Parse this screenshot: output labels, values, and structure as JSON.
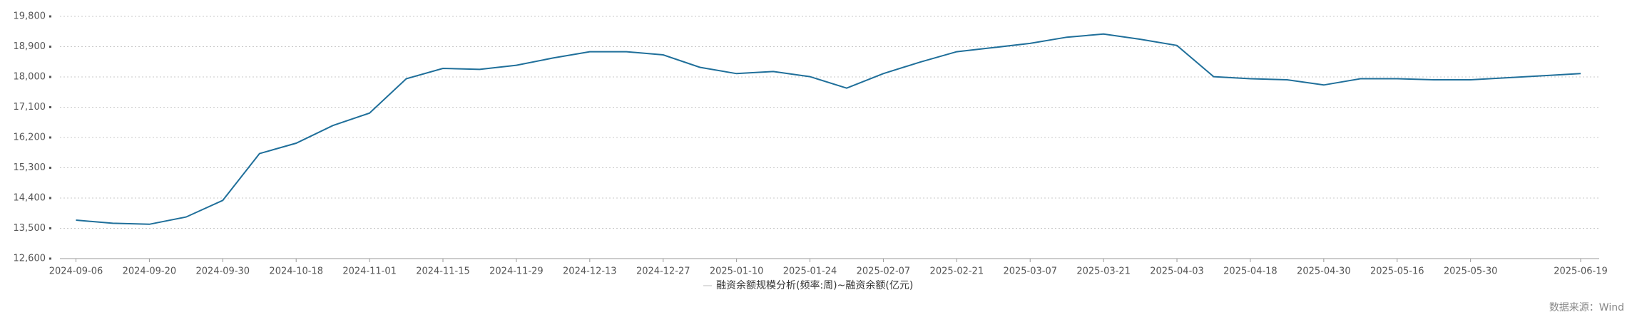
{
  "chart_data": {
    "type": "line",
    "categories": [
      "2024-09-06",
      null,
      "2024-09-20",
      null,
      "2024-09-30",
      null,
      "2024-10-18",
      null,
      "2024-11-01",
      null,
      "2024-11-15",
      null,
      "2024-11-29",
      null,
      "2024-12-13",
      null,
      "2024-12-27",
      null,
      "2025-01-10",
      null,
      "2025-01-24",
      null,
      "2025-02-07",
      null,
      "2025-02-21",
      null,
      "2025-03-07",
      null,
      "2025-03-21",
      null,
      "2025-04-03",
      null,
      "2025-04-18",
      null,
      "2025-04-30",
      null,
      "2025-05-16",
      null,
      "2025-05-30",
      null,
      null,
      "2025-06-19"
    ],
    "series": [
      {
        "name": "融资余额规模分析(频率:周)~融资余额(亿元)",
        "color": "#1f6f9a",
        "values": [
          13743,
          13650,
          13620,
          13836,
          14330,
          15721,
          16030,
          16555,
          16926,
          17946,
          18255,
          18224,
          18348,
          18564,
          18750,
          18750,
          18657,
          18286,
          18100,
          18162,
          18008,
          17668,
          18100,
          18440,
          18750,
          18873,
          18997,
          19182,
          19275,
          19120,
          18935,
          18008,
          17946,
          17915,
          17761,
          17946,
          17946,
          17915,
          17915,
          17977,
          18039,
          18100
        ]
      }
    ],
    "ylim": [
      12600,
      19800
    ],
    "yticks": [
      {
        "value": 12600,
        "label": "12,600"
      },
      {
        "value": 13500,
        "label": "13,500"
      },
      {
        "value": 14400,
        "label": "14,400"
      },
      {
        "value": 15300,
        "label": "15,300"
      },
      {
        "value": 16200,
        "label": "16,200"
      },
      {
        "value": 17100,
        "label": "17,100"
      },
      {
        "value": 18000,
        "label": "18,000"
      },
      {
        "value": 18900,
        "label": "18,900"
      },
      {
        "value": 19800,
        "label": "19,800"
      }
    ],
    "grid": true,
    "source": "数据来源：Wind"
  }
}
